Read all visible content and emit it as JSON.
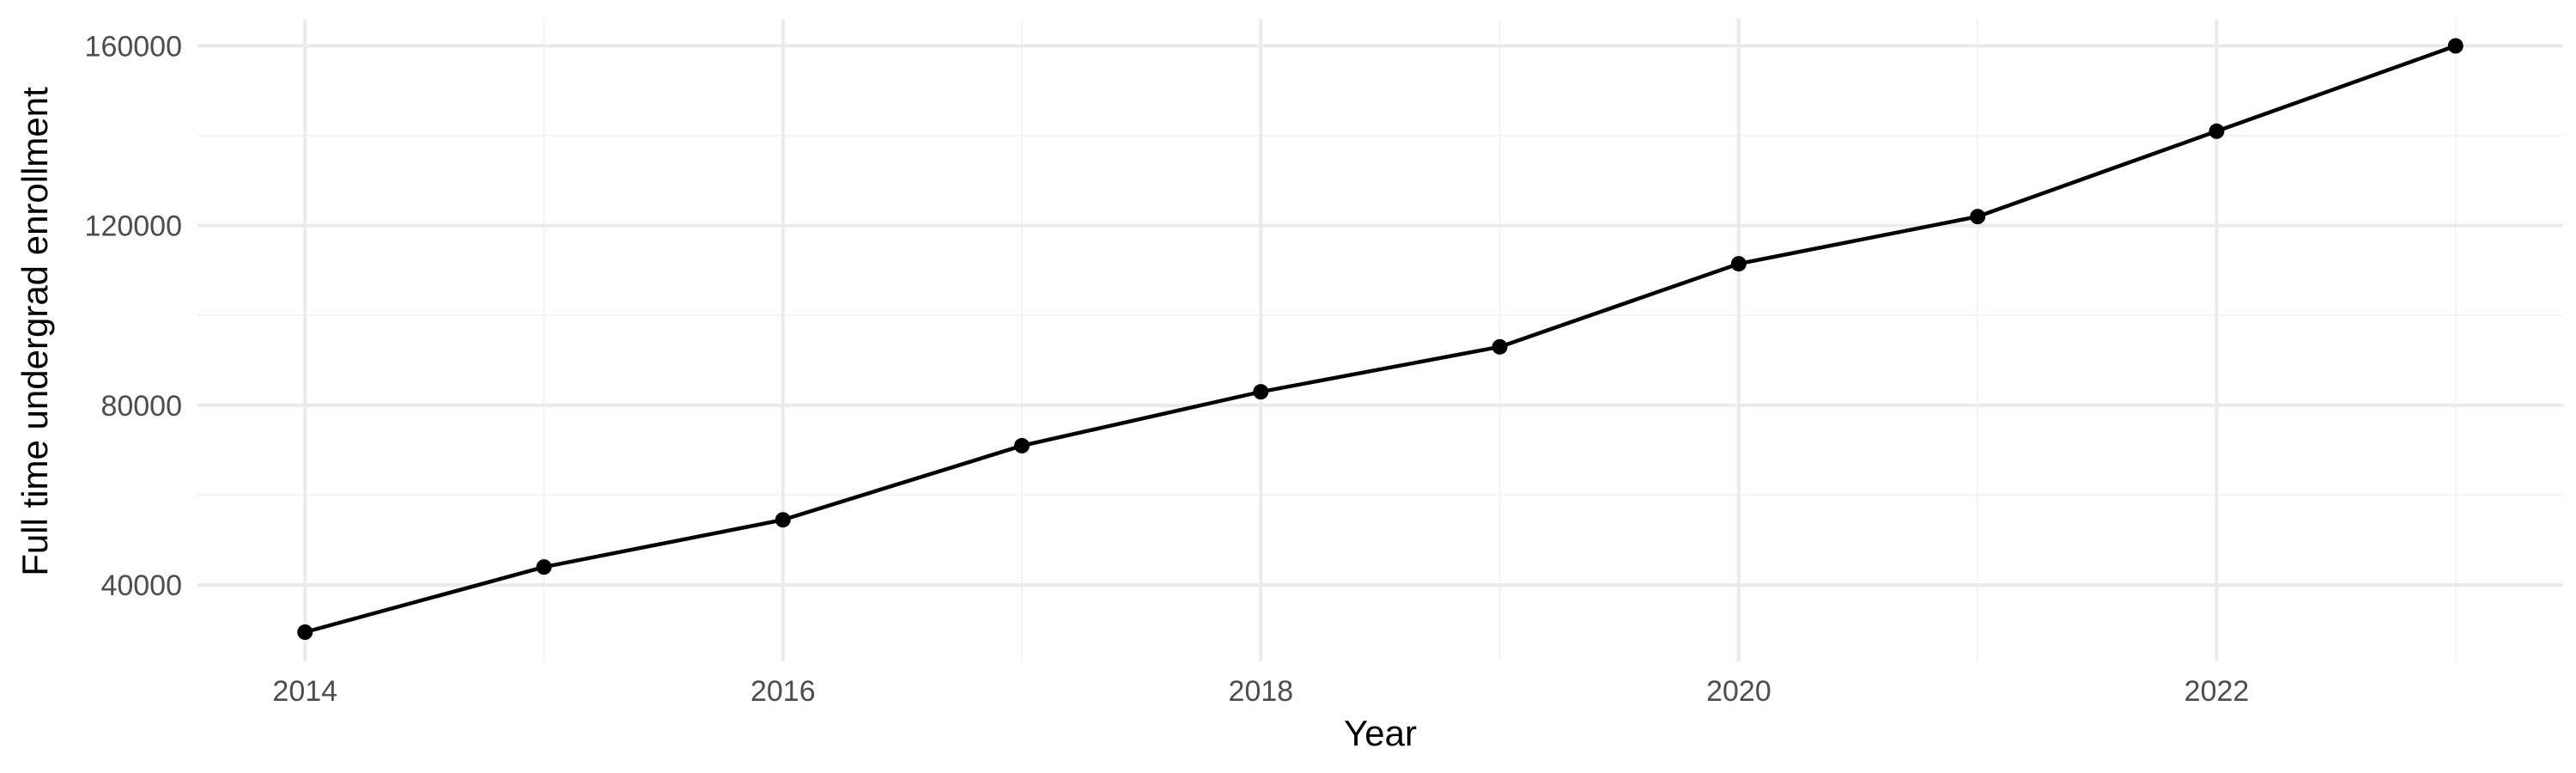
{
  "chart_data": {
    "type": "line",
    "title": "",
    "xlabel": "Year",
    "ylabel": "Full time undergrad enrollment",
    "x": [
      2014,
      2015,
      2016,
      2017,
      2018,
      2019,
      2020,
      2021,
      2022,
      2023
    ],
    "series": [
      {
        "name": "",
        "values": [
          29500,
          44000,
          54500,
          71000,
          83000,
          93000,
          111500,
          122000,
          141000,
          160000
        ],
        "color": "#000000"
      }
    ],
    "xlim": [
      2013.55,
      2023.45
    ],
    "ylim": [
      23000,
      166000
    ],
    "xticks": [
      2014,
      2016,
      2018,
      2020,
      2022
    ],
    "yticks": [
      40000,
      80000,
      120000,
      160000
    ],
    "grid": true,
    "markers": true
  }
}
